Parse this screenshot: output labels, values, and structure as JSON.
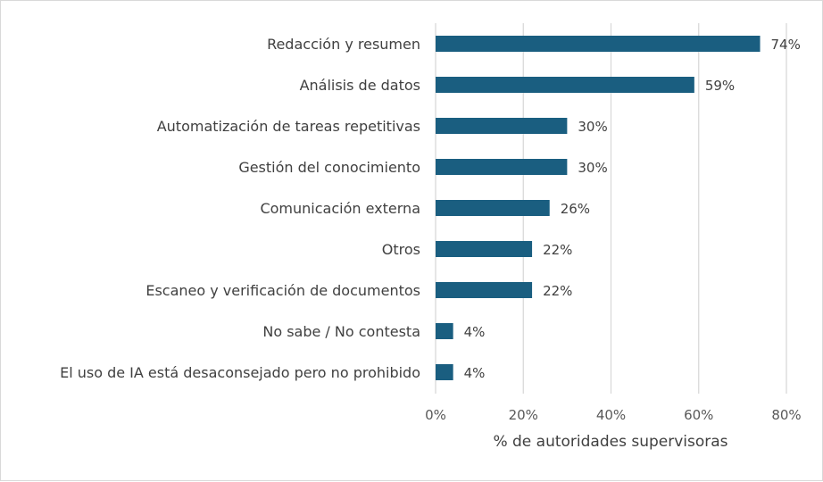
{
  "chart_data": {
    "type": "bar",
    "orientation": "horizontal",
    "categories": [
      "Redacción y resumen",
      "Análisis de datos",
      "Automatización de tareas repetitivas",
      "Gestión del conocimiento",
      "Comunicación externa",
      "Otros",
      "Escaneo y verificación de documentos",
      "No sabe / No contesta",
      "El uso de IA está desaconsejado pero no prohibido"
    ],
    "values": [
      74,
      59,
      30,
      30,
      26,
      22,
      22,
      4,
      4
    ],
    "value_labels": [
      "74%",
      "59%",
      "30%",
      "30%",
      "26%",
      "22%",
      "22%",
      "4%",
      "4%"
    ],
    "title": "",
    "xlabel": "% de autoridades supervisoras",
    "ylabel": "",
    "xlim": [
      0,
      80
    ],
    "x_ticks": [
      0,
      20,
      40,
      60,
      80
    ],
    "x_tick_labels": [
      "0%",
      "20%",
      "40%",
      "60%",
      "80%"
    ],
    "grid": "vertical",
    "legend": "none",
    "colors": {
      "bar": "#1a5e80",
      "grid": "#d9d9d9",
      "text": "#404040"
    }
  }
}
